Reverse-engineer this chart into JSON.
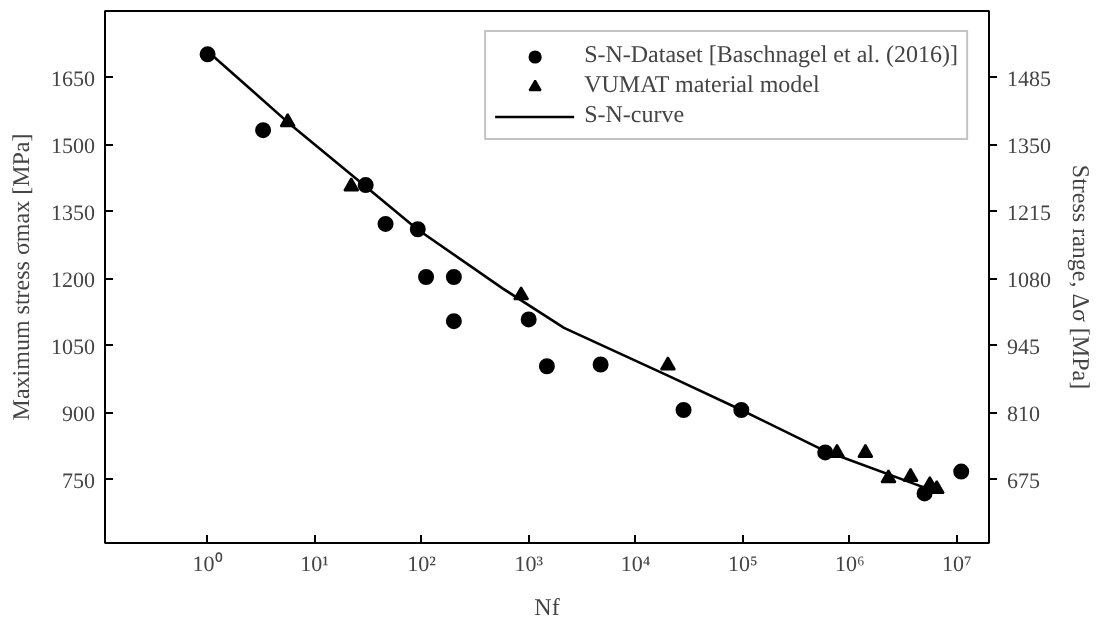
{
  "chart_data": {
    "type": "scatter",
    "xlabel": "Nf",
    "ylabel": "Maximum stress σmax [MPa]",
    "y2label": "Stress range, Δσ [MPa]",
    "log": "x",
    "xlim": [
      0.11,
      20000000
    ],
    "xticks": [
      {
        "value": 1,
        "label": "10⁰"
      },
      {
        "value": 10,
        "label": "10¹"
      },
      {
        "value": 100,
        "label": "10²"
      },
      {
        "value": 1000,
        "label": "10³"
      },
      {
        "value": 10000,
        "label": "10⁴"
      },
      {
        "value": 100000,
        "label": "10⁵"
      },
      {
        "value": 1000000,
        "label": "10⁶"
      },
      {
        "value": 10000000,
        "label": "10⁷"
      }
    ],
    "ylim": [
      608,
      1800
    ],
    "yticks": [
      750,
      900,
      1050,
      1200,
      1350,
      1500,
      1650
    ],
    "y2lim": [
      547,
      1620
    ],
    "y2ticks": [
      675,
      810,
      945,
      1080,
      1215,
      1350,
      1485
    ],
    "grid": false,
    "legend": "top right",
    "series": [
      {
        "name": "S-N-Dataset [Baschnagel et al. (2016)]",
        "marker": "circle",
        "color": "#000000",
        "x": [
          1,
          3.3,
          30,
          46,
          92,
          110,
          200,
          200,
          1000,
          1480,
          4700,
          28000,
          97000,
          590000,
          5000000,
          11000000
        ],
        "values": [
          1703,
          1533,
          1410,
          1323,
          1311,
          1204,
          1204,
          1105,
          1109,
          1004,
          1008,
          906,
          906,
          811,
          719,
          768
        ]
      },
      {
        "name": "VUMAT material model",
        "marker": "triangle",
        "color": "#000000",
        "x": [
          5.6,
          22,
          850,
          20000,
          760000,
          1400000,
          2300000,
          3700000,
          5600000,
          6500000
        ],
        "values": [
          1551,
          1407,
          1163,
          1006,
          810,
          810,
          753,
          756,
          738,
          729
        ]
      },
      {
        "name": "S-N-curve",
        "type": "line",
        "marker": "none",
        "line_style": "solid",
        "color": "#000000",
        "x": [
          1,
          5.6,
          27,
          91,
          575,
          2140,
          20000,
          97000,
          590000,
          6500000
        ],
        "values": [
          1710,
          1551,
          1416,
          1311,
          1178,
          1090,
          983,
          906,
          814,
          722
        ]
      }
    ]
  }
}
